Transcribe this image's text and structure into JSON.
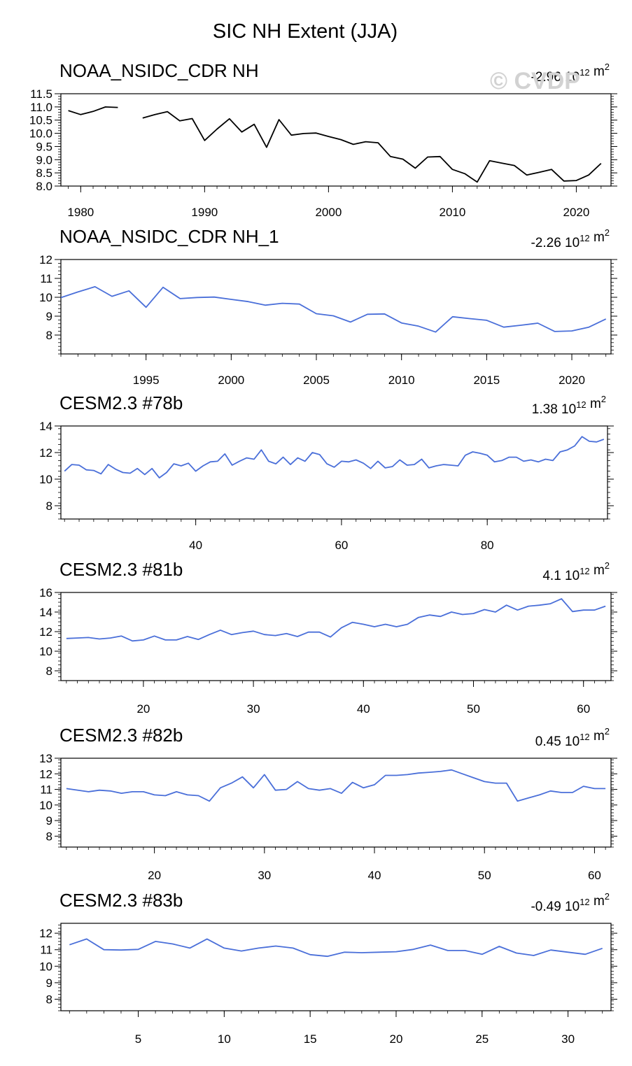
{
  "figure": {
    "title": "SIC NH Extent (JJA)",
    "watermark": "© CVDP"
  },
  "chart_data": [
    {
      "type": "line",
      "title": "NOAA_NSIDC_CDR NH",
      "trend": "-2.96",
      "trend_units": "10",
      "trend_exp": "12",
      "trend_tail": "m",
      "trend_tail_exp": "2",
      "color": "#000000",
      "xlim": [
        1978.4,
        2022.8
      ],
      "ylim": [
        8.0,
        11.5
      ],
      "xticks": [
        1980,
        1990,
        2000,
        2010,
        2020
      ],
      "yticks": [
        8.0,
        8.5,
        9.0,
        9.5,
        10.0,
        10.5,
        11.0,
        11.5
      ],
      "x": [
        1979,
        1980,
        1981,
        1982,
        1983,
        1984,
        1985,
        1986,
        1987,
        1988,
        1989,
        1990,
        1991,
        1992,
        1993,
        1994,
        1995,
        1996,
        1997,
        1998,
        1999,
        2000,
        2001,
        2002,
        2003,
        2004,
        2005,
        2006,
        2007,
        2008,
        2009,
        2010,
        2011,
        2012,
        2013,
        2014,
        2015,
        2016,
        2017,
        2018,
        2019,
        2020,
        2021,
        2022
      ],
      "y": [
        10.86,
        10.71,
        10.83,
        11.0,
        10.98,
        null,
        10.58,
        10.71,
        10.82,
        10.47,
        10.56,
        9.73,
        10.16,
        10.55,
        10.05,
        10.34,
        9.47,
        10.52,
        9.93,
        9.99,
        10.01,
        9.88,
        9.76,
        9.58,
        9.68,
        9.64,
        9.12,
        9.02,
        8.68,
        9.1,
        9.12,
        8.63,
        8.47,
        8.15,
        8.96,
        8.87,
        8.78,
        8.42,
        8.52,
        8.63,
        8.19,
        8.21,
        8.42,
        8.86
      ]
    },
    {
      "type": "line",
      "title": "NOAA_NSIDC_CDR NH_1",
      "trend": "-2.26",
      "trend_units": "10",
      "trend_exp": "12",
      "trend_tail": "m",
      "trend_tail_exp": "2",
      "color": "#4a6fd9",
      "xlim": [
        1990.0,
        2022.3
      ],
      "ylim": [
        7.0,
        12.0
      ],
      "xticks": [
        1995,
        2000,
        2005,
        2010,
        2015,
        2020
      ],
      "yticks": [
        8.0,
        9.0,
        10.0,
        11.0,
        12.0
      ],
      "x": [
        1990,
        1991,
        1992,
        1993,
        1994,
        1995,
        1996,
        1997,
        1998,
        1999,
        2000,
        2001,
        2002,
        2003,
        2004,
        2005,
        2006,
        2007,
        2008,
        2009,
        2010,
        2011,
        2012,
        2013,
        2014,
        2015,
        2016,
        2017,
        2018,
        2019,
        2020,
        2021,
        2022
      ],
      "y": [
        9.98,
        10.28,
        10.56,
        10.05,
        10.34,
        9.47,
        10.53,
        9.93,
        9.99,
        10.01,
        9.89,
        9.77,
        9.58,
        9.68,
        9.64,
        9.13,
        9.02,
        8.69,
        9.1,
        9.12,
        8.64,
        8.47,
        8.16,
        8.97,
        8.87,
        8.78,
        8.42,
        8.52,
        8.63,
        8.19,
        8.22,
        8.42,
        8.85
      ]
    },
    {
      "type": "line",
      "title": "CESM2.3 #78b",
      "trend": "1.38",
      "trend_units": "10",
      "trend_exp": "12",
      "trend_tail": "m",
      "trend_tail_exp": "2",
      "color": "#4a6fd9",
      "xlim": [
        21.5,
        96.5
      ],
      "ylim": [
        7.0,
        14.0
      ],
      "xticks": [
        40,
        60,
        80
      ],
      "yticks": [
        8,
        10,
        12,
        14
      ],
      "x": [
        22,
        23,
        24,
        25,
        26,
        27,
        28,
        29,
        30,
        31,
        32,
        33,
        34,
        35,
        36,
        37,
        38,
        39,
        40,
        41,
        42,
        43,
        44,
        45,
        46,
        47,
        48,
        49,
        50,
        51,
        52,
        53,
        54,
        55,
        56,
        57,
        58,
        59,
        60,
        61,
        62,
        63,
        64,
        65,
        66,
        67,
        68,
        69,
        70,
        71,
        72,
        73,
        74,
        75,
        76,
        77,
        78,
        79,
        80,
        81,
        82,
        83,
        84,
        85,
        86,
        87,
        88,
        89,
        90,
        91,
        92,
        93,
        94,
        95,
        96
      ],
      "y": [
        10.6,
        11.1,
        11.05,
        10.7,
        10.65,
        10.4,
        11.1,
        10.75,
        10.5,
        10.45,
        10.8,
        10.35,
        10.8,
        10.1,
        10.5,
        11.15,
        11.0,
        11.2,
        10.6,
        11.0,
        11.3,
        11.35,
        11.9,
        11.05,
        11.35,
        11.6,
        11.5,
        12.2,
        11.35,
        11.15,
        11.65,
        11.1,
        11.6,
        11.35,
        12.0,
        11.85,
        11.15,
        10.9,
        11.35,
        11.3,
        11.45,
        11.2,
        10.8,
        11.35,
        10.85,
        10.95,
        11.45,
        11.05,
        11.1,
        11.5,
        10.85,
        11.0,
        11.1,
        11.05,
        11.0,
        11.8,
        12.05,
        11.95,
        11.8,
        11.3,
        11.4,
        11.65,
        11.65,
        11.35,
        11.45,
        11.3,
        11.5,
        11.4,
        12.05,
        12.2,
        12.5,
        13.2,
        12.85,
        12.8,
        13.0
      ]
    },
    {
      "type": "line",
      "title": "CESM2.3 #81b",
      "trend": "4.1",
      "trend_units": "10",
      "trend_exp": "12",
      "trend_tail": "m",
      "trend_tail_exp": "2",
      "color": "#4a6fd9",
      "xlim": [
        12.5,
        62.5
      ],
      "ylim": [
        7.0,
        16.0
      ],
      "xticks": [
        20,
        30,
        40,
        50,
        60
      ],
      "yticks": [
        8,
        10,
        12,
        14,
        16
      ],
      "x": [
        13,
        14,
        15,
        16,
        17,
        18,
        19,
        20,
        21,
        22,
        23,
        24,
        25,
        26,
        27,
        28,
        29,
        30,
        31,
        32,
        33,
        34,
        35,
        36,
        37,
        38,
        39,
        40,
        41,
        42,
        43,
        44,
        45,
        46,
        47,
        48,
        49,
        50,
        51,
        52,
        53,
        54,
        55,
        56,
        57,
        58,
        59,
        60,
        61,
        62
      ],
      "y": [
        11.3,
        11.35,
        11.4,
        11.25,
        11.35,
        11.55,
        11.05,
        11.15,
        11.55,
        11.15,
        11.15,
        11.5,
        11.2,
        11.7,
        12.15,
        11.7,
        11.9,
        12.05,
        11.7,
        11.6,
        11.8,
        11.5,
        11.95,
        11.95,
        11.45,
        12.4,
        12.95,
        12.75,
        12.5,
        12.75,
        12.5,
        12.75,
        13.45,
        13.7,
        13.55,
        14.0,
        13.75,
        13.85,
        14.25,
        14.0,
        14.7,
        14.2,
        14.6,
        14.7,
        14.85,
        15.35,
        14.05,
        14.2,
        14.2,
        14.6
      ]
    },
    {
      "type": "line",
      "title": "CESM2.3 #82b",
      "trend": "0.45",
      "trend_units": "10",
      "trend_exp": "12",
      "trend_tail": "m",
      "trend_tail_exp": "2",
      "color": "#4a6fd9",
      "xlim": [
        11.5,
        61.5
      ],
      "ylim": [
        7.3,
        13.0
      ],
      "xticks": [
        20,
        30,
        40,
        50,
        60
      ],
      "yticks": [
        8.0,
        9.0,
        10.0,
        11.0,
        12.0,
        13.0
      ],
      "x": [
        12,
        14,
        15,
        16,
        17,
        18,
        19,
        20,
        21,
        22,
        23,
        24,
        25,
        26,
        27,
        28,
        29,
        30,
        31,
        32,
        33,
        34,
        35,
        36,
        37,
        38,
        39,
        40,
        41,
        42,
        43,
        44,
        45,
        46,
        47,
        48,
        49,
        50,
        51,
        52,
        53,
        54,
        55,
        56,
        57,
        58,
        59,
        60,
        61
      ],
      "y": [
        11.05,
        10.85,
        10.95,
        10.9,
        10.75,
        10.85,
        10.85,
        10.65,
        10.6,
        10.85,
        10.65,
        10.6,
        10.25,
        11.1,
        11.4,
        11.8,
        11.1,
        11.95,
        10.95,
        11.0,
        11.5,
        11.05,
        10.95,
        11.05,
        10.75,
        11.45,
        11.1,
        11.3,
        11.9,
        11.9,
        11.95,
        12.05,
        12.1,
        12.15,
        12.25,
        12.0,
        11.75,
        11.5,
        11.4,
        11.4,
        10.25,
        10.45,
        10.65,
        10.9,
        10.8,
        10.8,
        11.2,
        11.05,
        11.05
      ]
    },
    {
      "type": "line",
      "title": "CESM2.3 #83b",
      "trend": "-0.49",
      "trend_units": "10",
      "trend_exp": "12",
      "trend_tail": "m",
      "trend_tail_exp": "2",
      "color": "#4a6fd9",
      "xlim": [
        0.5,
        32.5
      ],
      "ylim": [
        7.3,
        12.6
      ],
      "xticks": [
        5,
        10,
        15,
        20,
        25,
        30
      ],
      "yticks": [
        8.0,
        9.0,
        10.0,
        11.0,
        12.0
      ],
      "x": [
        1,
        2,
        3,
        4,
        5,
        6,
        7,
        8,
        9,
        10,
        11,
        12,
        13,
        14,
        15,
        16,
        17,
        18,
        19,
        20,
        21,
        22,
        23,
        24,
        25,
        26,
        27,
        28,
        29,
        30,
        31,
        32
      ],
      "y": [
        11.3,
        11.65,
        11.0,
        10.98,
        11.02,
        11.5,
        11.35,
        11.1,
        11.65,
        11.1,
        10.92,
        11.1,
        11.22,
        11.1,
        10.7,
        10.6,
        10.85,
        10.82,
        10.85,
        10.88,
        11.02,
        11.28,
        10.95,
        10.95,
        10.72,
        11.2,
        10.8,
        10.65,
        10.98,
        10.85,
        10.72,
        11.08
      ]
    }
  ]
}
